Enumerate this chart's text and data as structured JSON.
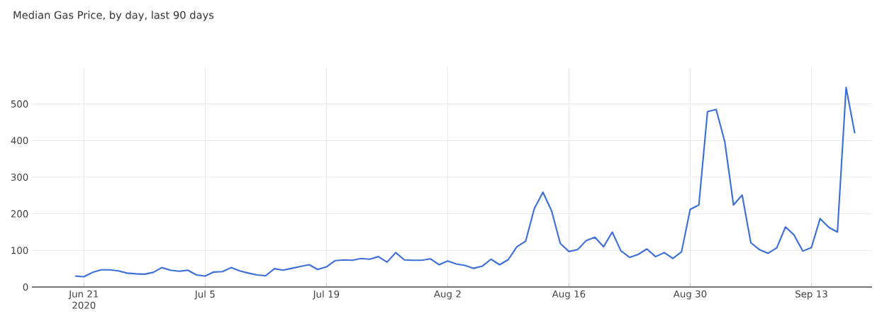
{
  "chart_data": {
    "type": "line",
    "title": "Median Gas Price, by day, last 90 days",
    "x": [
      "2020-06-20",
      "2020-06-21",
      "2020-06-22",
      "2020-06-23",
      "2020-06-24",
      "2020-06-25",
      "2020-06-26",
      "2020-06-27",
      "2020-06-28",
      "2020-06-29",
      "2020-06-30",
      "2020-07-01",
      "2020-07-02",
      "2020-07-03",
      "2020-07-04",
      "2020-07-05",
      "2020-07-06",
      "2020-07-07",
      "2020-07-08",
      "2020-07-09",
      "2020-07-10",
      "2020-07-11",
      "2020-07-12",
      "2020-07-13",
      "2020-07-14",
      "2020-07-15",
      "2020-07-16",
      "2020-07-17",
      "2020-07-18",
      "2020-07-19",
      "2020-07-20",
      "2020-07-21",
      "2020-07-22",
      "2020-07-23",
      "2020-07-24",
      "2020-07-25",
      "2020-07-26",
      "2020-07-27",
      "2020-07-28",
      "2020-07-29",
      "2020-07-30",
      "2020-07-31",
      "2020-08-01",
      "2020-08-02",
      "2020-08-03",
      "2020-08-04",
      "2020-08-05",
      "2020-08-06",
      "2020-08-07",
      "2020-08-08",
      "2020-08-09",
      "2020-08-10",
      "2020-08-11",
      "2020-08-12",
      "2020-08-13",
      "2020-08-14",
      "2020-08-15",
      "2020-08-16",
      "2020-08-17",
      "2020-08-18",
      "2020-08-19",
      "2020-08-20",
      "2020-08-21",
      "2020-08-22",
      "2020-08-23",
      "2020-08-24",
      "2020-08-25",
      "2020-08-26",
      "2020-08-27",
      "2020-08-28",
      "2020-08-29",
      "2020-08-30",
      "2020-08-31",
      "2020-09-01",
      "2020-09-02",
      "2020-09-03",
      "2020-09-04",
      "2020-09-05",
      "2020-09-06",
      "2020-09-07",
      "2020-09-08",
      "2020-09-09",
      "2020-09-10",
      "2020-09-11",
      "2020-09-12",
      "2020-09-13",
      "2020-09-14",
      "2020-09-15",
      "2020-09-16",
      "2020-09-17",
      "2020-09-18"
    ],
    "series": [
      {
        "color": "#3d6fd9",
        "values": [
          30,
          28,
          40,
          47,
          47,
          44,
          38,
          36,
          35,
          40,
          53,
          46,
          43,
          46,
          33,
          30,
          41,
          42,
          53,
          44,
          38,
          33,
          31,
          50,
          46,
          51,
          56,
          61,
          48,
          55,
          72,
          74,
          73,
          78,
          76,
          83,
          68,
          94,
          74,
          73,
          73,
          77,
          61,
          71,
          63,
          59,
          51,
          57,
          76,
          61,
          75,
          110,
          125,
          214,
          259,
          208,
          119,
          97,
          102,
          127,
          136,
          110,
          150,
          99,
          81,
          89,
          104,
          83,
          94,
          78,
          96,
          212,
          224,
          479,
          485,
          396,
          224,
          251,
          121,
          102,
          92,
          107,
          164,
          142,
          98,
          108,
          187,
          163,
          150,
          545,
          420
        ]
      }
    ],
    "xlim": [
      "2020-06-15",
      "2020-09-20"
    ],
    "xticks": [
      {
        "value": "2020-06-21",
        "label": "Jun 21 2020"
      },
      {
        "value": "2020-07-05",
        "label": "Jul 5"
      },
      {
        "value": "2020-07-19",
        "label": "Jul 19"
      },
      {
        "value": "2020-08-02",
        "label": "Aug 2"
      },
      {
        "value": "2020-08-16",
        "label": "Aug 16"
      },
      {
        "value": "2020-08-30",
        "label": "Aug 30"
      },
      {
        "value": "2020-09-13",
        "label": "Sep 13"
      }
    ],
    "ylim": [
      0,
      600
    ],
    "yticks": [
      0,
      100,
      200,
      300,
      400,
      500
    ],
    "grid": true,
    "legend": false,
    "marker": "none",
    "line_style": "solid"
  }
}
